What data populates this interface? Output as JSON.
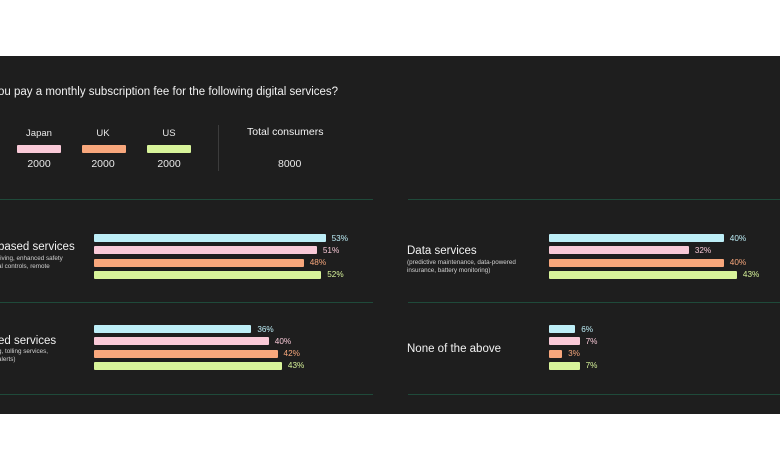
{
  "question": "ou pay a monthly subscription fee for the following digital services?",
  "colors": {
    "Japan": "#f9c9d7",
    "UK": "#f8a77c",
    "US": "#d8f49a",
    "extra": "#bdeef7",
    "panel_bg": "#1e1e1e",
    "divider": "#1f4a3a"
  },
  "legend": [
    {
      "name": "Japan",
      "count": "2000"
    },
    {
      "name": "UK",
      "count": "2000"
    },
    {
      "name": "US",
      "count": "2000"
    }
  ],
  "total": {
    "label": "Total consumers",
    "value": "8000"
  },
  "chart_data": {
    "type": "bar",
    "orientation": "horizontal",
    "title": "",
    "unit": "%",
    "series_order": [
      "",
      "Japan",
      "UK",
      "US"
    ],
    "groups": [
      {
        "title": "based services",
        "description": "riving, enhanced safety\nal controls, remote",
        "values": [
          53,
          51,
          48,
          52
        ],
        "labels": [
          "53%",
          "51%",
          "48%",
          "52%"
        ]
      },
      {
        "title": "ed services",
        "description": "g, tolling services,\nalerts)",
        "values": [
          36,
          40,
          42,
          43
        ],
        "labels": [
          "36%",
          "40%",
          "42%",
          "43%"
        ]
      },
      {
        "title": "Data services",
        "description": "(predictive maintenance, data-powered\ninsurance, battery monitoring)",
        "values": [
          40,
          32,
          40,
          43
        ],
        "labels": [
          "40%",
          "32%",
          "40%",
          "43%"
        ]
      },
      {
        "title": "None of the above",
        "description": "",
        "values": [
          6,
          7,
          3,
          7
        ],
        "labels": [
          "6%",
          "7%",
          "3%",
          "7%"
        ]
      }
    ]
  }
}
